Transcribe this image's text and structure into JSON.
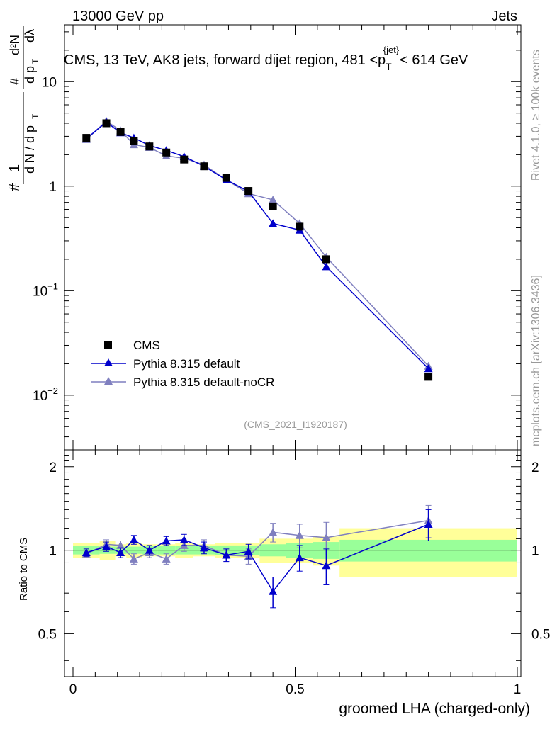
{
  "header": {
    "left": "13000 GeV pp",
    "right": "Jets"
  },
  "side_labels": {
    "rivet": "Rivet 4.1.0, ≥ 100k events",
    "mcplots": "mcplots.cern.ch [arXiv:1306.3436]"
  },
  "chart_data": {
    "type": "scatter",
    "title_parts": {
      "main": "CMS, 13 TeV, AK8 jets, forward dijet region, 481 <p",
      "sub": "T",
      "sup": "{jet}",
      "tail": "< 614 GeV"
    },
    "analysis_id": "(CMS_2021_I1920187)",
    "xlabel": "groomed LHA (charged-only)",
    "ylabel_ratio": "Ratio to CMS",
    "xlim": [
      0,
      1
    ],
    "ylim_main": [
      0.003,
      35
    ],
    "ylim_ratio": [
      0.35,
      2.3
    ],
    "x_ticks": [
      "0",
      "0.5",
      "1"
    ],
    "x_tick_values": [
      0,
      0.5,
      1
    ],
    "y_ticks_main": [
      {
        "value": 10,
        "base": "10",
        "exp": ""
      },
      {
        "value": 1,
        "base": "1",
        "exp": ""
      },
      {
        "value": 0.1,
        "base": "10",
        "exp": "−1"
      },
      {
        "value": 0.01,
        "base": "10",
        "exp": "−2"
      }
    ],
    "y_ticks_ratio": [
      {
        "value": 2,
        "label": "2"
      },
      {
        "value": 1,
        "label": "1"
      },
      {
        "value": 0.5,
        "label": "0.5"
      }
    ],
    "bins": [
      [
        0.0,
        0.06
      ],
      [
        0.06,
        0.095
      ],
      [
        0.095,
        0.12
      ],
      [
        0.12,
        0.155
      ],
      [
        0.155,
        0.19
      ],
      [
        0.19,
        0.23
      ],
      [
        0.23,
        0.27
      ],
      [
        0.27,
        0.32
      ],
      [
        0.32,
        0.37
      ],
      [
        0.37,
        0.42
      ],
      [
        0.42,
        0.48
      ],
      [
        0.48,
        0.54
      ],
      [
        0.54,
        0.6
      ],
      [
        0.6,
        1.0
      ]
    ],
    "series": [
      {
        "name": "CMS",
        "color": "#000000",
        "marker": "square",
        "x": [
          0.03,
          0.075,
          0.107,
          0.137,
          0.172,
          0.21,
          0.25,
          0.295,
          0.345,
          0.395,
          0.45,
          0.51,
          0.57,
          0.8
        ],
        "y": [
          2.9,
          4.0,
          3.3,
          2.7,
          2.4,
          2.1,
          1.8,
          1.55,
          1.2,
          0.9,
          0.64,
          0.41,
          0.2,
          0.015
        ],
        "ratio_band_inner": [
          0.035,
          0.03,
          0.03,
          0.03,
          0.035,
          0.035,
          0.035,
          0.035,
          0.04,
          0.04,
          0.05,
          0.06,
          0.07,
          0.09
        ],
        "ratio_band_outer": [
          0.06,
          0.08,
          0.05,
          0.06,
          0.05,
          0.05,
          0.06,
          0.05,
          0.06,
          0.06,
          0.1,
          0.1,
          0.12,
          0.2
        ]
      },
      {
        "name": "Pythia 8.315 default",
        "color": "#0000cc",
        "marker": "triangle",
        "x": [
          0.03,
          0.075,
          0.107,
          0.137,
          0.172,
          0.21,
          0.25,
          0.295,
          0.345,
          0.395,
          0.45,
          0.51,
          0.57,
          0.8
        ],
        "y": [
          2.85,
          4.1,
          3.25,
          2.9,
          2.45,
          2.2,
          1.92,
          1.55,
          1.15,
          0.89,
          0.44,
          0.38,
          0.17,
          0.018
        ],
        "ratio": [
          0.98,
          1.03,
          0.98,
          1.09,
          1.0,
          1.08,
          1.09,
          1.02,
          0.96,
          0.99,
          0.71,
          0.94,
          0.88,
          1.24
        ],
        "ratio_err": [
          0.03,
          0.04,
          0.04,
          0.04,
          0.04,
          0.04,
          0.05,
          0.05,
          0.05,
          0.06,
          0.09,
          0.1,
          0.13,
          0.16
        ]
      },
      {
        "name": "Pythia 8.315 default-noCR",
        "color": "#7f7fbf",
        "marker": "triangle",
        "x": [
          0.03,
          0.075,
          0.107,
          0.137,
          0.172,
          0.21,
          0.25,
          0.295,
          0.345,
          0.395,
          0.45,
          0.51,
          0.57,
          0.8
        ],
        "y": [
          2.8,
          4.2,
          3.4,
          2.5,
          2.35,
          1.95,
          1.85,
          1.6,
          1.15,
          0.85,
          0.74,
          0.44,
          0.21,
          0.019
        ],
        "ratio": [
          0.97,
          1.05,
          1.04,
          0.93,
          0.98,
          0.93,
          1.04,
          1.04,
          0.96,
          0.95,
          1.16,
          1.13,
          1.11,
          1.28
        ],
        "ratio_err": [
          0.03,
          0.04,
          0.04,
          0.04,
          0.04,
          0.04,
          0.05,
          0.05,
          0.05,
          0.06,
          0.09,
          0.11,
          0.15,
          0.17
        ]
      }
    ]
  }
}
